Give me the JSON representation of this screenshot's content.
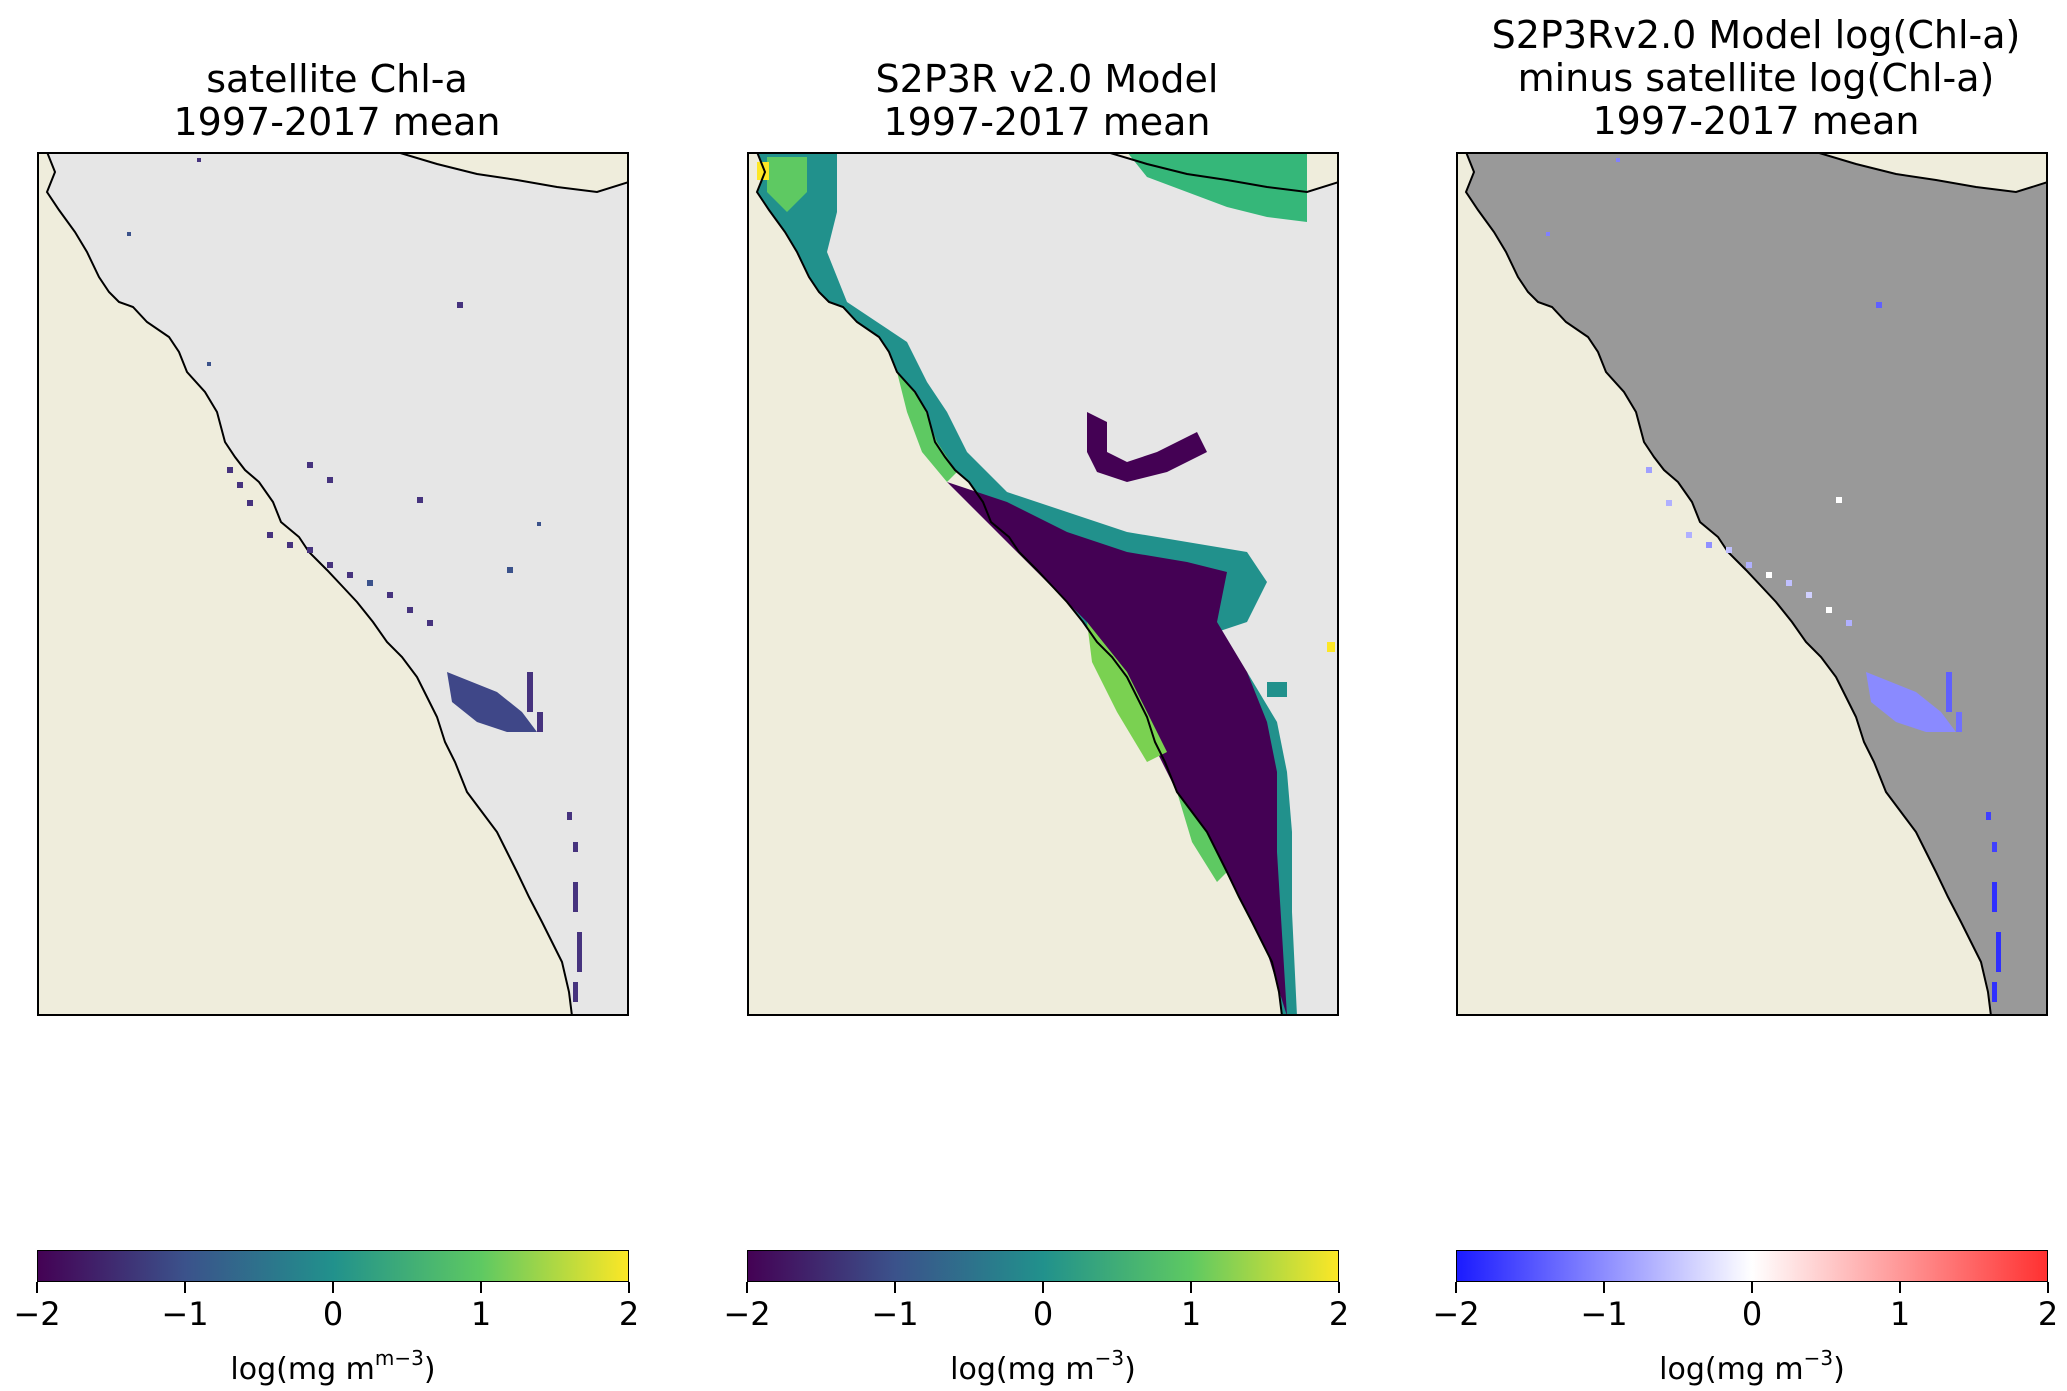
{
  "panels": [
    {
      "title": [
        "satellite Chl-a",
        "1997-2017 mean"
      ],
      "colorbar": {
        "colormap": "viridis",
        "ticks": [
          "−2",
          "−1",
          "0",
          "1",
          "2"
        ],
        "label_main": "log(mg m",
        "label_sup": "m−3",
        "label_end": ")"
      }
    },
    {
      "title": [
        "S2P3R v2.0 Model",
        "1997-2017 mean"
      ],
      "colorbar": {
        "colormap": "viridis",
        "ticks": [
          "−2",
          "−1",
          "0",
          "1",
          "2"
        ],
        "label_main": "log(mg m",
        "label_sup": "−3",
        "label_end": ")"
      }
    },
    {
      "title": [
        "S2P3Rv2.0 Model log(Chl-a)",
        "minus satellite log(Chl-a)",
        "1997-2017 mean"
      ],
      "colorbar": {
        "colormap": "bwr",
        "ticks": [
          "−2",
          "−1",
          "0",
          "1",
          "2"
        ],
        "label_main": "log(mg m",
        "label_sup": "−3",
        "label_end": ")"
      }
    }
  ],
  "colors": {
    "land": "#efeddc",
    "ocean_blank": "#e6e6e6",
    "ocean_diff": "#999999",
    "viridis": [
      "#440154",
      "#3b528b",
      "#21918c",
      "#5ec962",
      "#fde725"
    ],
    "bwr": [
      "#1a1aff",
      "#ffffff",
      "#ff3030"
    ]
  }
}
